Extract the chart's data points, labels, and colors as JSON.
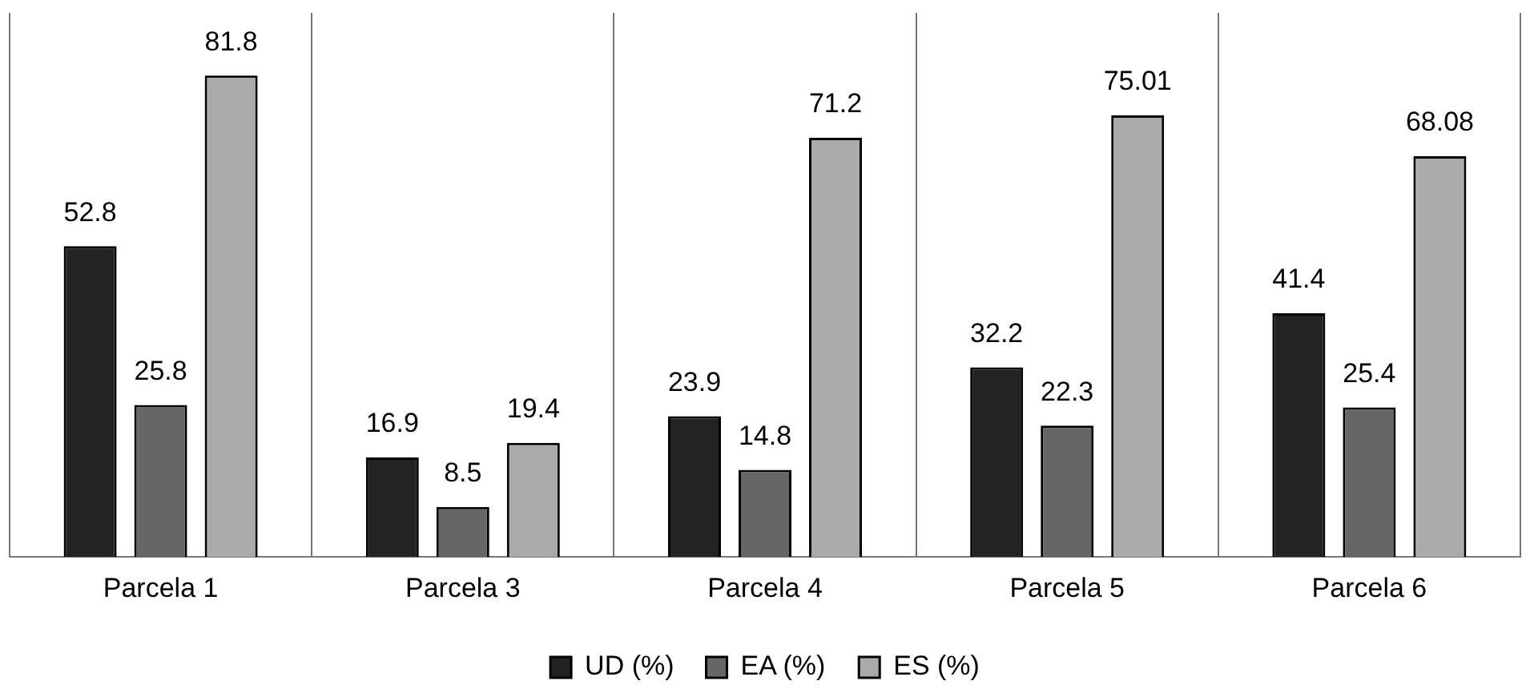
{
  "chart_data": {
    "type": "bar",
    "categories": [
      "Parcela 1",
      "Parcela 3",
      "Parcela 4",
      "Parcela 5",
      "Parcela 6"
    ],
    "series": [
      {
        "name": "UD (%)",
        "color": "#222222",
        "values": [
          52.8,
          16.9,
          23.9,
          32.2,
          41.4
        ]
      },
      {
        "name": "EA (%)",
        "color": "#666666",
        "values": [
          25.8,
          8.5,
          14.8,
          22.3,
          25.4
        ]
      },
      {
        "name": "ES (%)",
        "color": "#aaaaaa",
        "values": [
          81.8,
          19.4,
          71.2,
          75.01,
          68.08
        ]
      }
    ],
    "data_labels": true,
    "grid": "x",
    "legend": "bottom"
  }
}
